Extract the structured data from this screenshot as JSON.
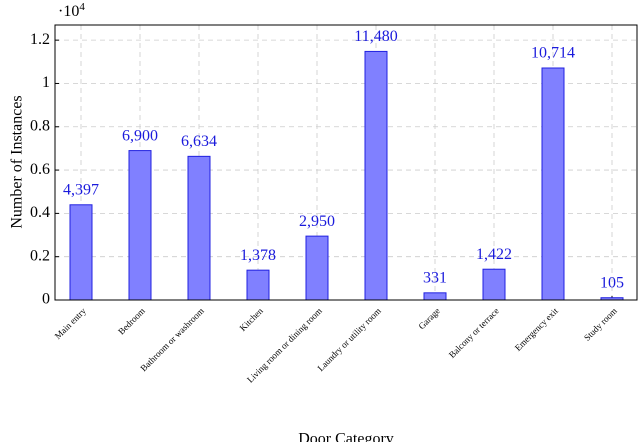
{
  "chart_data": {
    "type": "bar",
    "x_label": "Door Category",
    "y_label": "Number of Instances",
    "axis_multiplier": {
      "base": "·10",
      "exponent": "4"
    },
    "categories": [
      "Main entry",
      "Bedroom",
      "Bathroom or washroom",
      "Kitchen",
      "Living room or dining room",
      "Laundry or utility room",
      "Garage",
      "Balcony or terrace",
      "Emergency exit",
      "Study room"
    ],
    "values": [
      4397,
      6900,
      6634,
      1378,
      2950,
      11480,
      331,
      1422,
      10714,
      105
    ],
    "value_labels": [
      "4,397",
      "6,900",
      "6,634",
      "1,378",
      "2,950",
      "11,480",
      "331",
      "1,422",
      "10,714",
      "105"
    ],
    "color": "#8080ff",
    "ylim": [
      0,
      12700
    ],
    "yticks": [
      {
        "value": 0,
        "label": "0"
      },
      {
        "value": 2000,
        "label": "0.2"
      },
      {
        "value": 4000,
        "label": "0.4"
      },
      {
        "value": 6000,
        "label": "0.6"
      },
      {
        "value": 8000,
        "label": "0.8"
      },
      {
        "value": 10000,
        "label": "1"
      },
      {
        "value": 12000,
        "label": "1.2"
      }
    ],
    "grid": true
  }
}
